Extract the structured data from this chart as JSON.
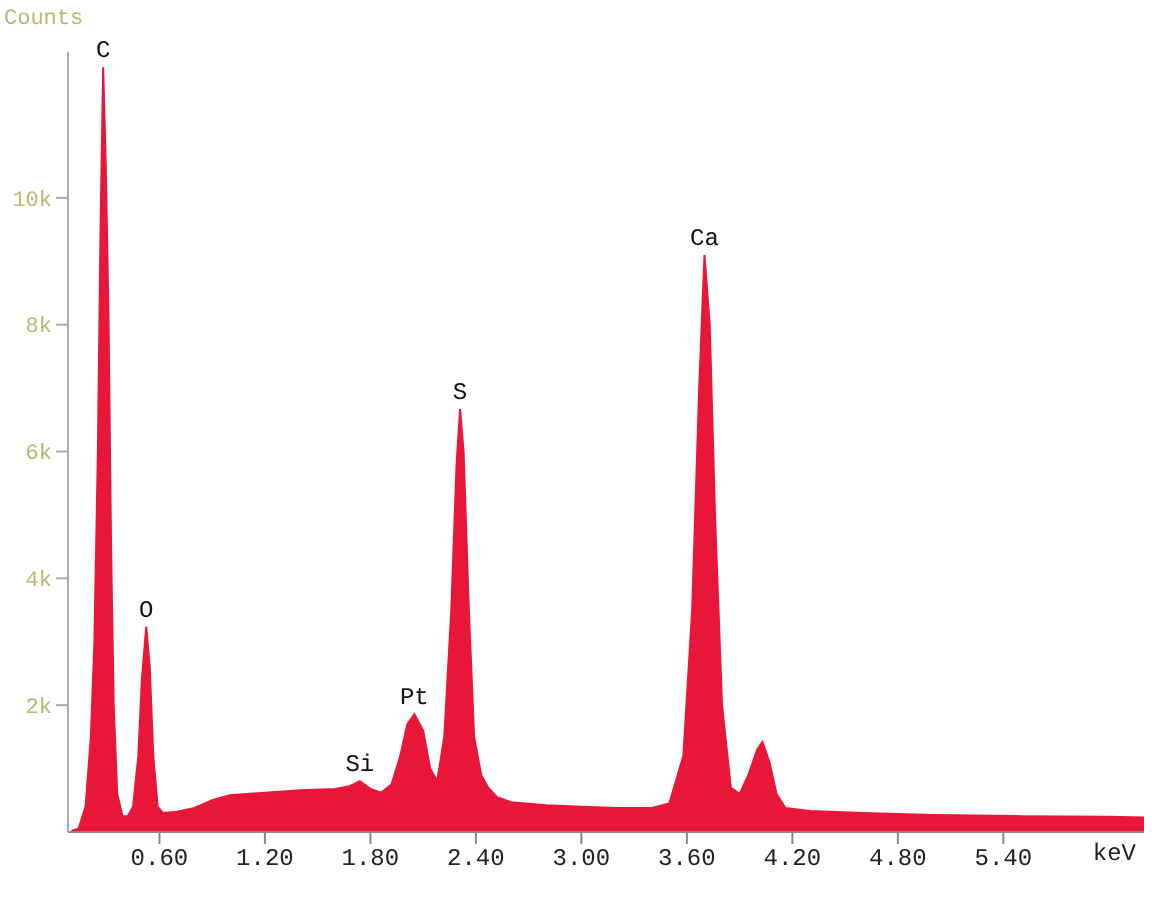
{
  "chart_data": {
    "type": "area",
    "xlabel": "keV",
    "ylabel": "Counts",
    "x": [
      0.1,
      0.14,
      0.18,
      0.21,
      0.23,
      0.25,
      0.265,
      0.28,
      0.295,
      0.31,
      0.325,
      0.34,
      0.36,
      0.39,
      0.42,
      0.45,
      0.48,
      0.5,
      0.525,
      0.545,
      0.565,
      0.59,
      0.62,
      0.7,
      0.8,
      0.9,
      1.0,
      1.2,
      1.4,
      1.6,
      1.68,
      1.74,
      1.8,
      1.86,
      1.92,
      1.97,
      2.01,
      2.05,
      2.1,
      2.14,
      2.18,
      2.22,
      2.26,
      2.29,
      2.31,
      2.33,
      2.36,
      2.39,
      2.43,
      2.47,
      2.52,
      2.6,
      2.8,
      3.0,
      3.2,
      3.4,
      3.5,
      3.58,
      3.63,
      3.67,
      3.7,
      3.73,
      3.76,
      3.8,
      3.85,
      3.9,
      3.95,
      4.0,
      4.03,
      4.07,
      4.11,
      4.16,
      4.3,
      4.6,
      5.0,
      5.5,
      6.0,
      6.2
    ],
    "series": [
      {
        "color": "#e8173a",
        "values": [
          20,
          50,
          400,
          1500,
          3000,
          6000,
          9500,
          12060,
          10500,
          8200,
          4500,
          2000,
          600,
          250,
          250,
          400,
          1200,
          2400,
          3240,
          2600,
          1200,
          400,
          300,
          320,
          380,
          500,
          580,
          620,
          660,
          680,
          720,
          800,
          680,
          620,
          750,
          1200,
          1700,
          1860,
          1600,
          1000,
          800,
          1500,
          3500,
          5800,
          6670,
          6000,
          3500,
          1500,
          900,
          700,
          550,
          470,
          420,
          400,
          380,
          380,
          450,
          1200,
          3500,
          7000,
          9100,
          8000,
          5000,
          2000,
          700,
          600,
          900,
          1300,
          1420,
          1100,
          600,
          380,
          330,
          300,
          270,
          250,
          240,
          230
        ]
      }
    ],
    "xlim": [
      0.08,
      6.2
    ],
    "xticks": [
      {
        "value": 0.6,
        "label": "0.60"
      },
      {
        "value": 1.2,
        "label": "1.20"
      },
      {
        "value": 1.8,
        "label": "1.80"
      },
      {
        "value": 2.4,
        "label": "2.40"
      },
      {
        "value": 3.0,
        "label": "3.00"
      },
      {
        "value": 3.6,
        "label": "3.60"
      },
      {
        "value": 4.2,
        "label": "4.20"
      },
      {
        "value": 4.8,
        "label": "4.80"
      },
      {
        "value": 5.4,
        "label": "5.40"
      }
    ],
    "ylim": [
      0,
      12300
    ],
    "yticks": [
      {
        "value": 2000,
        "label": "2k"
      },
      {
        "value": 4000,
        "label": "4k"
      },
      {
        "value": 6000,
        "label": "6k"
      },
      {
        "value": 8000,
        "label": "8k"
      },
      {
        "value": 10000,
        "label": "10k"
      }
    ],
    "grid": false,
    "annotations": [
      {
        "text": "C",
        "x": 0.28,
        "y": 12060
      },
      {
        "text": "O",
        "x": 0.525,
        "y": 3240
      },
      {
        "text": "Si",
        "x": 1.74,
        "y": 800
      },
      {
        "text": "Pt",
        "x": 2.05,
        "y": 1860
      },
      {
        "text": "S",
        "x": 2.31,
        "y": 6670
      },
      {
        "text": "Ca",
        "x": 3.7,
        "y": 9100
      }
    ]
  }
}
